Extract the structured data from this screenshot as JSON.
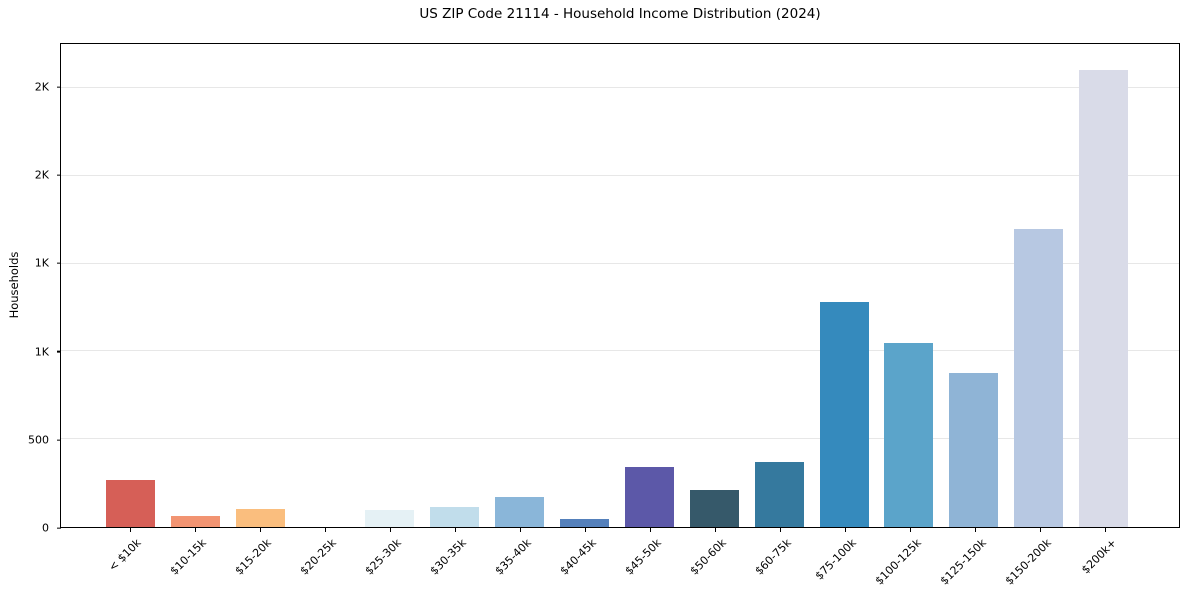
{
  "chart_data": {
    "type": "bar",
    "title": "US ZIP Code 21114 - Household Income Distribution (2024)",
    "xlabel": "",
    "ylabel": "Households",
    "categories": [
      "< $10k",
      "$10-15k",
      "$15-20k",
      "$20-25k",
      "$25-30k",
      "$30-35k",
      "$35-40k",
      "$40-45k",
      "$45-50k",
      "$50-60k",
      "$60-75k",
      "$75-100k",
      "$100-125k",
      "$125-150k",
      "$150-200k",
      "$200k+"
    ],
    "values": [
      270,
      62,
      101,
      0,
      99,
      112,
      172,
      45,
      344,
      210,
      371,
      1281,
      1046,
      876,
      1697,
      2604
    ],
    "bar_colors": [
      "#d65f57",
      "#f29472",
      "#fabe7e",
      "#f7f3ee",
      "#e5f1f5",
      "#c1ddeb",
      "#8ab6d9",
      "#5480bb",
      "#5c58a8",
      "#36596a",
      "#35799e",
      "#358abd",
      "#5ba4ca",
      "#8fb4d6",
      "#b7c8e2",
      "#d9dbe8"
    ],
    "ylim": [
      0,
      2750
    ],
    "yticks": [
      {
        "value": 0,
        "label": "0"
      },
      {
        "value": 500,
        "label": "500"
      },
      {
        "value": 1000,
        "label": "1K"
      },
      {
        "value": 1500,
        "label": "1K"
      },
      {
        "value": 2000,
        "label": "2K"
      },
      {
        "value": 2500,
        "label": "2K"
      }
    ],
    "grid": "horizontal",
    "legend": "none",
    "background_color": "#ffffff",
    "spine_color": "#000000",
    "gridline_color": "#e7e7e7"
  }
}
